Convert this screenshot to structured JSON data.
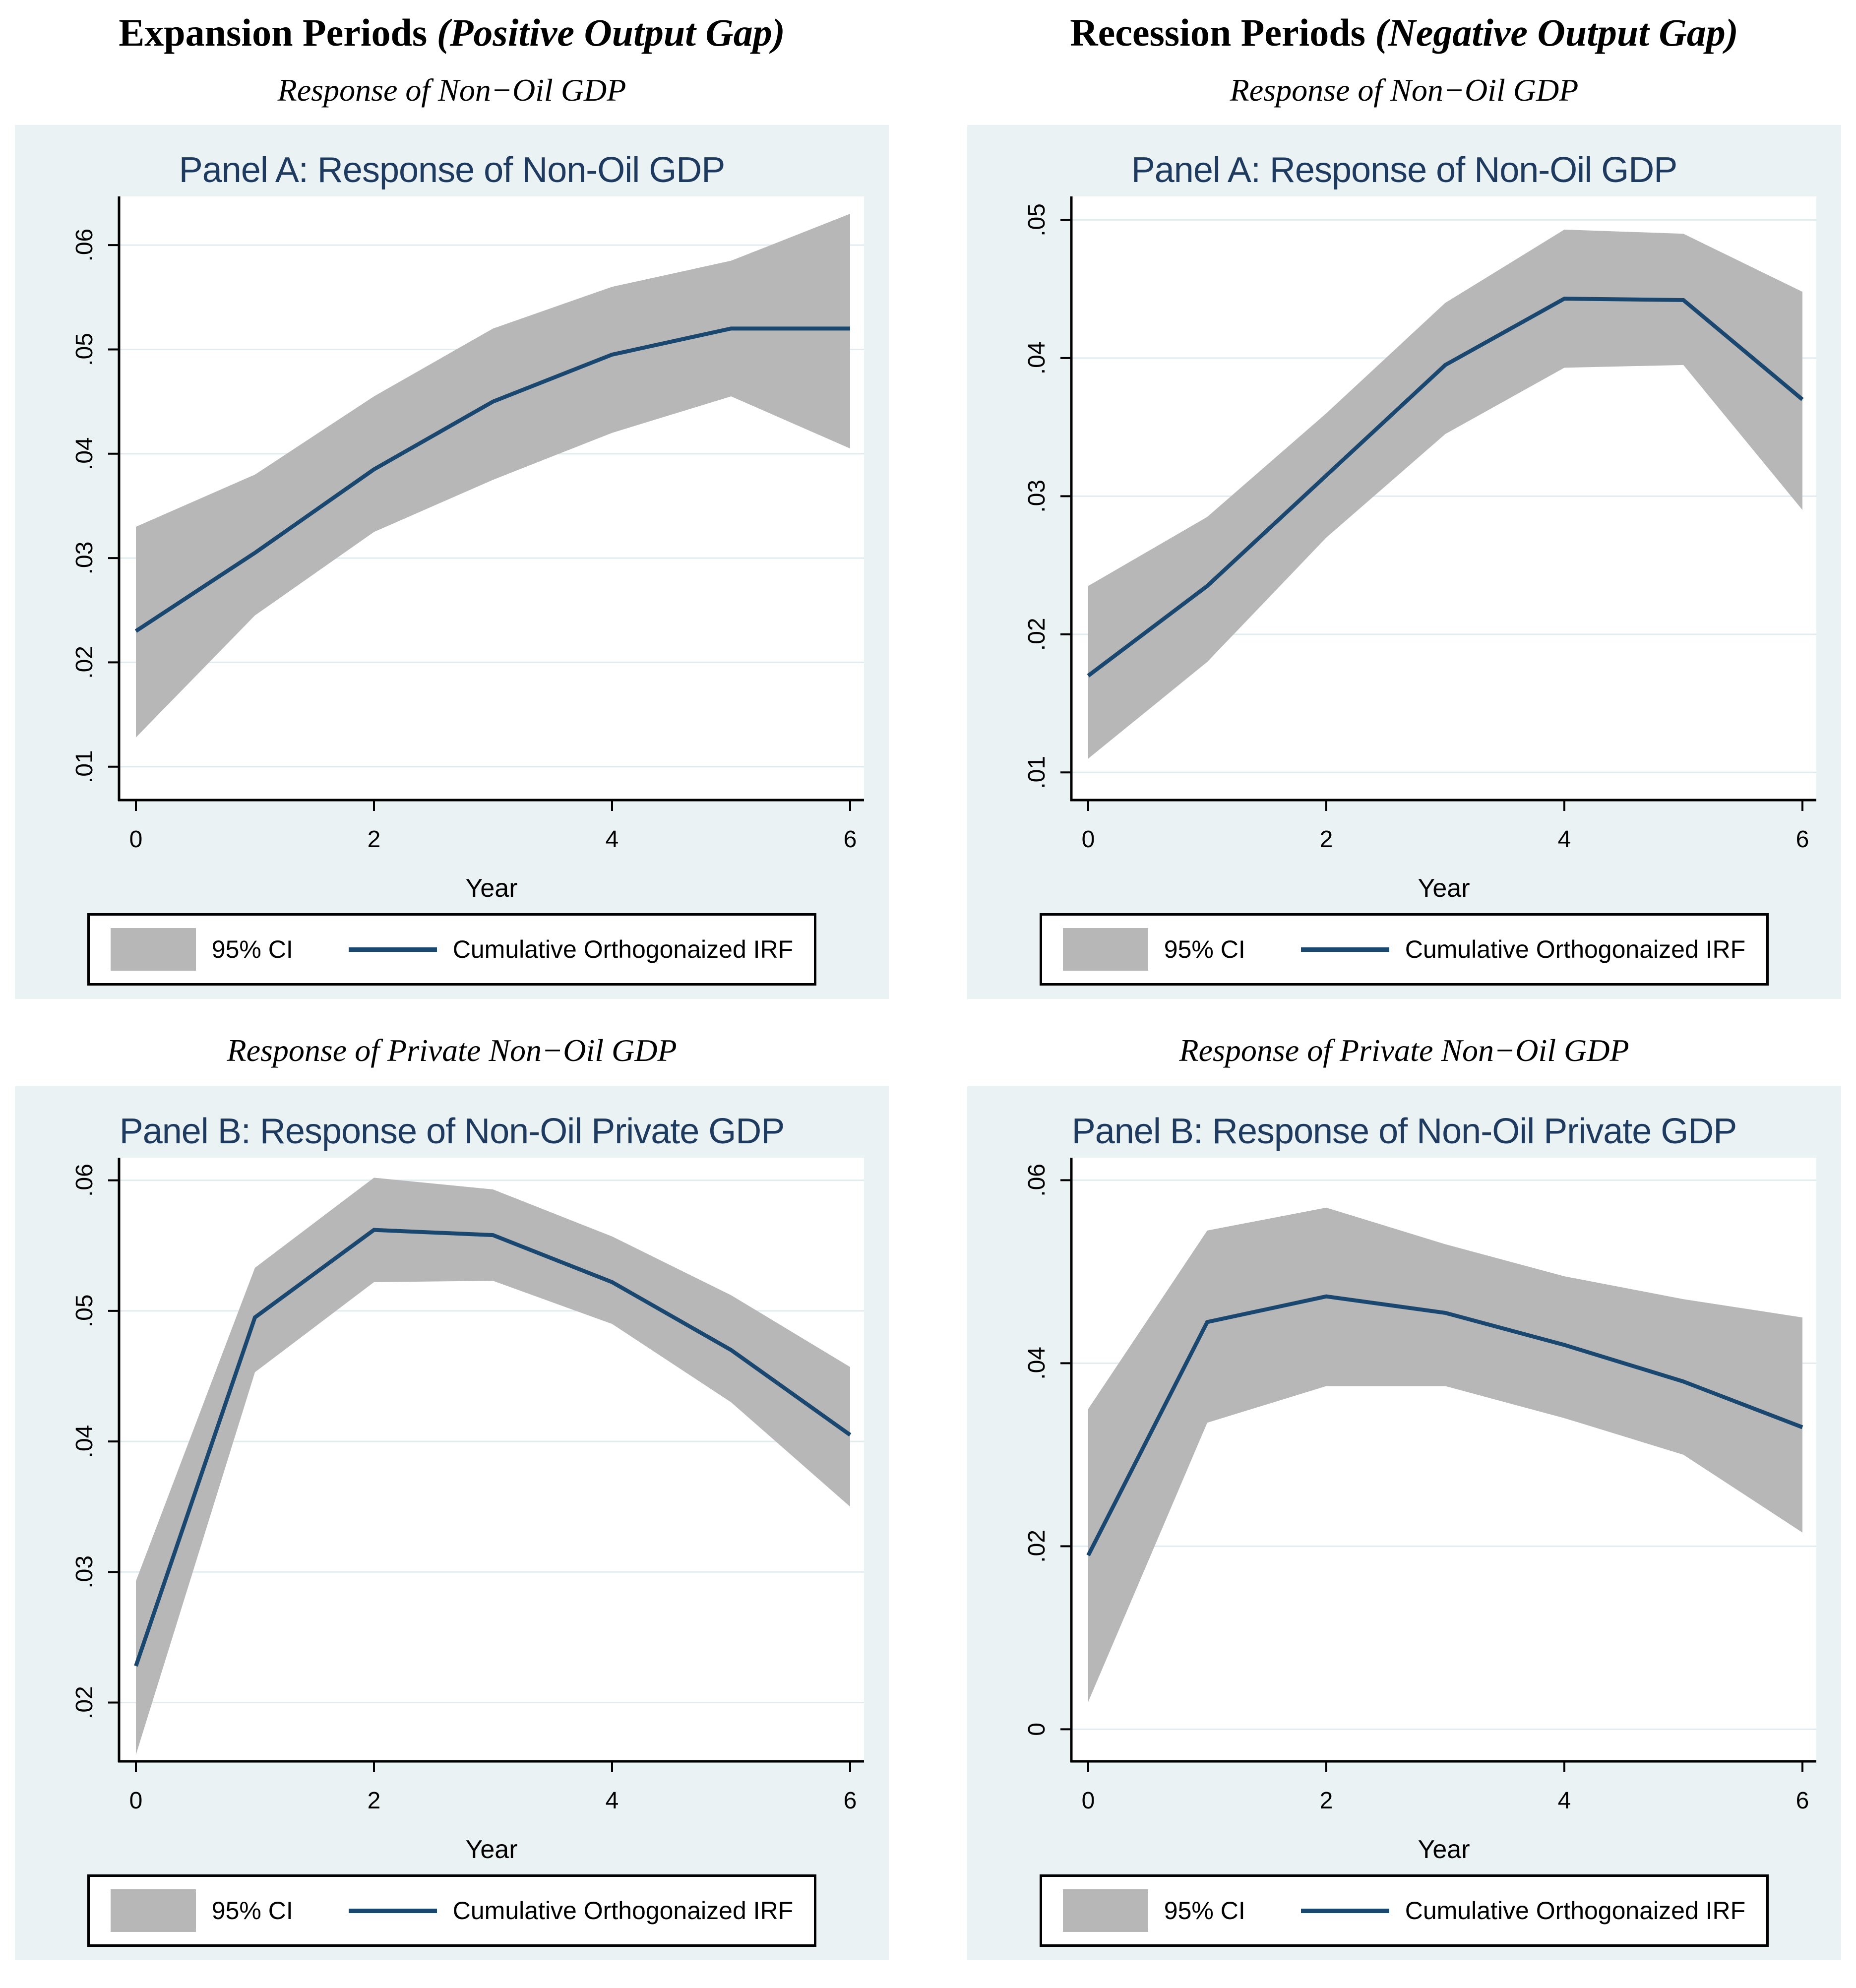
{
  "colors": {
    "band": "#b7b7b7",
    "line": "#1a476f",
    "chart_bg": "#eaf2f3",
    "plot_bg": "#ffffff",
    "grid": "#e0ecee",
    "axis": "#000000",
    "text": "#000000",
    "title": "#1e3a5f"
  },
  "columns": [
    {
      "header": "Expansion Periods",
      "header_paren": "(Positive Output Gap)"
    },
    {
      "header": "Recession Periods",
      "header_paren": "(Negative Output Gap)"
    }
  ],
  "rows": [
    {
      "subtitle": "Response of Non−Oil GDP"
    },
    {
      "subtitle": "Response of Private Non−Oil GDP"
    }
  ],
  "legend": {
    "ci_label": "95% CI",
    "irf_label": "Cumulative Orthogonaized IRF"
  },
  "chart_data": [
    {
      "type": "line",
      "position": "expansion-panel-a",
      "title": "Panel A: Response of Non-Oil GDP",
      "xlabel": "Year",
      "x": [
        0,
        1,
        2,
        3,
        4,
        5,
        6
      ],
      "xticks": [
        0,
        2,
        4,
        6
      ],
      "yticks": [
        ".01",
        ".02",
        ".03",
        ".04",
        ".05",
        ".06"
      ],
      "ytick_values": [
        0.01,
        0.02,
        0.03,
        0.04,
        0.05,
        0.06
      ],
      "ylim": [
        0.0068,
        0.064
      ],
      "grid": "horizontal",
      "legend_position": "bottom",
      "series": [
        {
          "name": "95% CI",
          "type": "band",
          "lower": [
            0.0128,
            0.0245,
            0.0325,
            0.0375,
            0.042,
            0.0455,
            0.0405
          ],
          "upper": [
            0.033,
            0.038,
            0.0455,
            0.052,
            0.056,
            0.0585,
            0.063
          ]
        },
        {
          "name": "Cumulative Orthogonaized IRF",
          "type": "line",
          "values": [
            0.023,
            0.0305,
            0.0385,
            0.045,
            0.0495,
            0.052,
            0.052
          ]
        }
      ]
    },
    {
      "type": "line",
      "position": "recession-panel-a",
      "title": "Panel A: Response of Non-Oil GDP",
      "xlabel": "Year",
      "x": [
        0,
        1,
        2,
        3,
        4,
        5,
        6
      ],
      "xticks": [
        0,
        2,
        4,
        6
      ],
      "yticks": [
        ".01",
        ".02",
        ".03",
        ".04",
        ".05"
      ],
      "ytick_values": [
        0.01,
        0.02,
        0.03,
        0.04,
        0.05
      ],
      "ylim": [
        0.008,
        0.0512
      ],
      "grid": "horizontal",
      "legend_position": "bottom",
      "series": [
        {
          "name": "95% CI",
          "type": "band",
          "lower": [
            0.011,
            0.018,
            0.027,
            0.0345,
            0.0393,
            0.0395,
            0.029
          ],
          "upper": [
            0.0235,
            0.0285,
            0.036,
            0.044,
            0.0493,
            0.049,
            0.0448
          ]
        },
        {
          "name": "Cumulative Orthogonaized IRF",
          "type": "line",
          "values": [
            0.017,
            0.0235,
            0.0315,
            0.0395,
            0.0443,
            0.0442,
            0.037
          ]
        }
      ]
    },
    {
      "type": "line",
      "position": "expansion-panel-b",
      "title": "Panel B: Response of Non-Oil Private GDP",
      "xlabel": "Year",
      "x": [
        0,
        1,
        2,
        3,
        4,
        5,
        6
      ],
      "xticks": [
        0,
        2,
        4,
        6
      ],
      "yticks": [
        ".02",
        ".03",
        ".04",
        ".05",
        ".06"
      ],
      "ytick_values": [
        0.02,
        0.03,
        0.04,
        0.05,
        0.06
      ],
      "ylim": [
        0.0155,
        0.0612
      ],
      "grid": "horizontal",
      "legend_position": "bottom",
      "series": [
        {
          "name": "95% CI",
          "type": "band",
          "lower": [
            0.016,
            0.0453,
            0.0522,
            0.0523,
            0.049,
            0.043,
            0.035
          ],
          "upper": [
            0.0293,
            0.0533,
            0.0602,
            0.0593,
            0.0557,
            0.0512,
            0.0457
          ]
        },
        {
          "name": "Cumulative Orthogonaized IRF",
          "type": "line",
          "values": [
            0.0228,
            0.0495,
            0.0562,
            0.0558,
            0.0522,
            0.047,
            0.0405
          ]
        }
      ]
    },
    {
      "type": "line",
      "position": "recession-panel-b",
      "title": "Panel B: Response of Non-Oil Private GDP",
      "xlabel": "Year",
      "x": [
        0,
        1,
        2,
        3,
        4,
        5,
        6
      ],
      "xticks": [
        0,
        2,
        4,
        6
      ],
      "yticks": [
        "0",
        ".02",
        ".04",
        ".06"
      ],
      "ytick_values": [
        0,
        0.02,
        0.04,
        0.06
      ],
      "ylim": [
        -0.0035,
        0.0617
      ],
      "grid": "horizontal",
      "legend_position": "bottom",
      "series": [
        {
          "name": "95% CI",
          "type": "band",
          "lower": [
            0.003,
            0.0335,
            0.0375,
            0.0375,
            0.034,
            0.03,
            0.0215
          ],
          "upper": [
            0.035,
            0.0545,
            0.057,
            0.053,
            0.0495,
            0.047,
            0.045
          ]
        },
        {
          "name": "Cumulative Orthogonaized IRF",
          "type": "line",
          "values": [
            0.019,
            0.0445,
            0.0473,
            0.0455,
            0.042,
            0.038,
            0.033
          ]
        }
      ]
    }
  ]
}
